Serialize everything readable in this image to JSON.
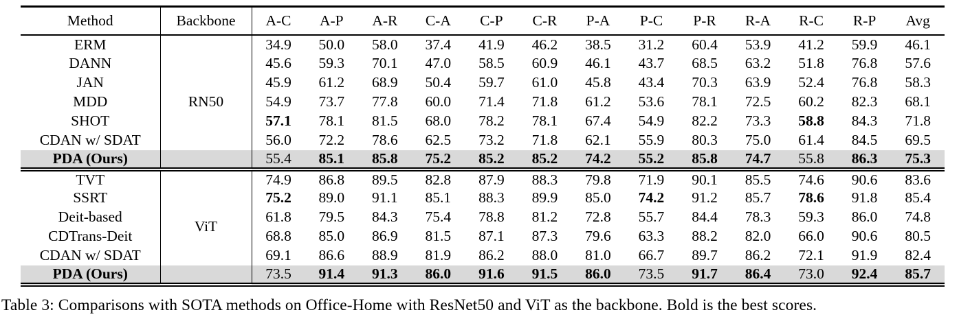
{
  "caption": "Table 3: Comparisons with SOTA methods on Office-Home with ResNet50 and ViT as the backbone. Bold is the best scores.",
  "table": {
    "highlight_color": "#d9d9d9",
    "columns": [
      "Method",
      "Backbone",
      "A-C",
      "A-P",
      "A-R",
      "C-A",
      "C-P",
      "C-R",
      "P-A",
      "P-C",
      "P-R",
      "R-A",
      "R-C",
      "R-P",
      "Avg"
    ],
    "groups": [
      {
        "backbone": "RN50",
        "rows": [
          {
            "method": "ERM",
            "bold_method": false,
            "highlight": false,
            "values": [
              "34.9",
              "50.0",
              "58.0",
              "37.4",
              "41.9",
              "46.2",
              "38.5",
              "31.2",
              "60.4",
              "53.9",
              "41.2",
              "59.9",
              "46.1"
            ],
            "bold_cols": []
          },
          {
            "method": "DANN",
            "bold_method": false,
            "highlight": false,
            "values": [
              "45.6",
              "59.3",
              "70.1",
              "47.0",
              "58.5",
              "60.9",
              "46.1",
              "43.7",
              "68.5",
              "63.2",
              "51.8",
              "76.8",
              "57.6"
            ],
            "bold_cols": []
          },
          {
            "method": "JAN",
            "bold_method": false,
            "highlight": false,
            "values": [
              "45.9",
              "61.2",
              "68.9",
              "50.4",
              "59.7",
              "61.0",
              "45.8",
              "43.4",
              "70.3",
              "63.9",
              "52.4",
              "76.8",
              "58.3"
            ],
            "bold_cols": []
          },
          {
            "method": "MDD",
            "bold_method": false,
            "highlight": false,
            "values": [
              "54.9",
              "73.7",
              "77.8",
              "60.0",
              "71.4",
              "71.8",
              "61.2",
              "53.6",
              "78.1",
              "72.5",
              "60.2",
              "82.3",
              "68.1"
            ],
            "bold_cols": []
          },
          {
            "method": "SHOT",
            "bold_method": false,
            "highlight": false,
            "values": [
              "57.1",
              "78.1",
              "81.5",
              "68.0",
              "78.2",
              "78.1",
              "67.4",
              "54.9",
              "82.2",
              "73.3",
              "58.8",
              "84.3",
              "71.8"
            ],
            "bold_cols": [
              0,
              10
            ]
          },
          {
            "method": "CDAN w/ SDAT",
            "bold_method": false,
            "highlight": false,
            "values": [
              "56.0",
              "72.2",
              "78.6",
              "62.5",
              "73.2",
              "71.8",
              "62.1",
              "55.9",
              "80.3",
              "75.0",
              "61.4",
              "84.5",
              "69.5"
            ],
            "bold_cols": []
          },
          {
            "method": "PDA (Ours)",
            "bold_method": true,
            "highlight": true,
            "values": [
              "55.4",
              "85.1",
              "85.8",
              "75.2",
              "85.2",
              "85.2",
              "74.2",
              "55.2",
              "85.8",
              "74.7",
              "55.8",
              "86.3",
              "75.3"
            ],
            "bold_cols": [
              1,
              2,
              3,
              4,
              5,
              6,
              7,
              8,
              9,
              11,
              12
            ]
          }
        ]
      },
      {
        "backbone": "ViT",
        "rows": [
          {
            "method": "TVT",
            "bold_method": false,
            "highlight": false,
            "values": [
              "74.9",
              "86.8",
              "89.5",
              "82.8",
              "87.9",
              "88.3",
              "79.8",
              "71.9",
              "90.1",
              "85.5",
              "74.6",
              "90.6",
              "83.6"
            ],
            "bold_cols": []
          },
          {
            "method": "SSRT",
            "bold_method": false,
            "highlight": false,
            "values": [
              "75.2",
              "89.0",
              "91.1",
              "85.1",
              "88.3",
              "89.9",
              "85.0",
              "74.2",
              "91.2",
              "85.7",
              "78.6",
              "91.8",
              "85.4"
            ],
            "bold_cols": [
              0,
              7,
              10
            ]
          },
          {
            "method": "Deit-based",
            "bold_method": false,
            "highlight": false,
            "values": [
              "61.8",
              "79.5",
              "84.3",
              "75.4",
              "78.8",
              "81.2",
              "72.8",
              "55.7",
              "84.4",
              "78.3",
              "59.3",
              "86.0",
              "74.8"
            ],
            "bold_cols": []
          },
          {
            "method": "CDTrans-Deit",
            "bold_method": false,
            "highlight": false,
            "values": [
              "68.8",
              "85.0",
              "86.9",
              "81.5",
              "87.1",
              "87.3",
              "79.6",
              "63.3",
              "88.2",
              "82.0",
              "66.0",
              "90.6",
              "80.5"
            ],
            "bold_cols": []
          },
          {
            "method": "CDAN w/ SDAT",
            "bold_method": false,
            "highlight": false,
            "values": [
              "69.1",
              "86.6",
              "88.9",
              "81.9",
              "86.2",
              "88.0",
              "81.0",
              "66.7",
              "89.7",
              "86.2",
              "72.1",
              "91.9",
              "82.4"
            ],
            "bold_cols": []
          },
          {
            "method": "PDA (Ours)",
            "bold_method": true,
            "highlight": true,
            "values": [
              "73.5",
              "91.4",
              "91.3",
              "86.0",
              "91.6",
              "91.5",
              "86.0",
              "73.5",
              "91.7",
              "86.4",
              "73.0",
              "92.4",
              "85.7"
            ],
            "bold_cols": [
              1,
              2,
              3,
              4,
              5,
              6,
              8,
              9,
              11,
              12
            ]
          }
        ]
      }
    ]
  }
}
